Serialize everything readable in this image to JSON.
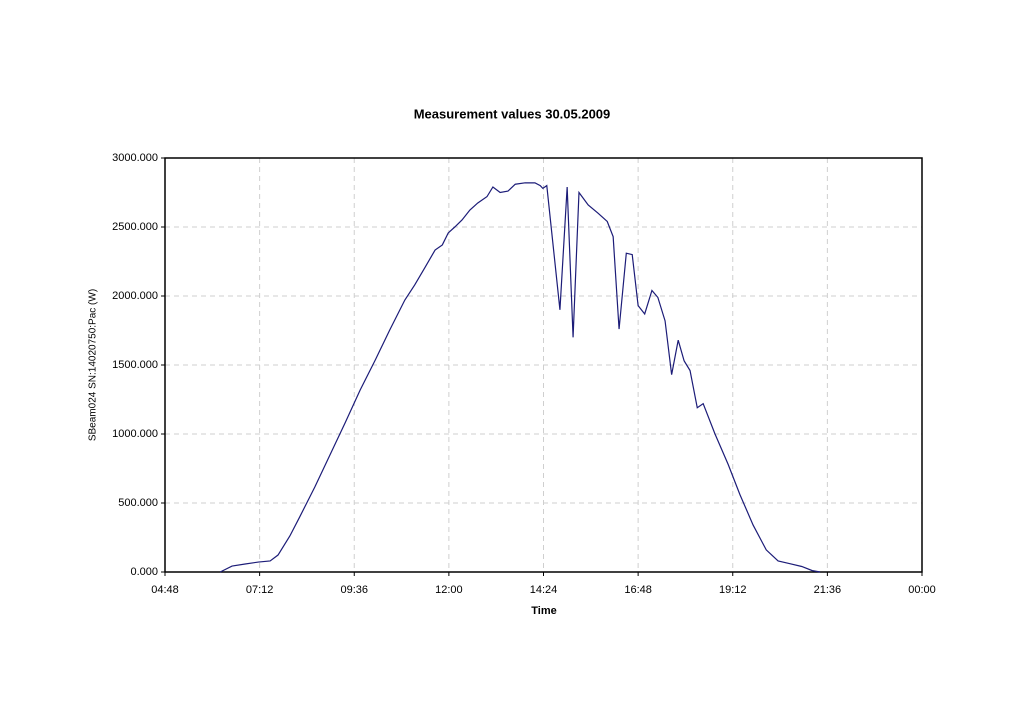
{
  "chart_data": {
    "type": "line",
    "title": "Measurement values 30.05.2009",
    "xlabel": "Time",
    "ylabel": "SBeam024 SN:14020750:Pac (W)",
    "x": [
      372,
      390,
      410,
      430,
      448,
      460,
      478,
      493,
      516,
      539,
      562,
      585,
      608,
      630,
      653,
      668,
      684,
      699,
      710,
      719,
      729,
      740,
      752,
      764,
      778,
      787,
      798,
      810,
      821,
      836,
      851,
      859,
      863,
      869,
      889,
      900,
      909,
      918,
      932,
      947,
      961,
      970,
      979,
      990,
      999,
      1008,
      1018,
      1029,
      1038,
      1049,
      1059,
      1069,
      1078,
      1087,
      1098,
      1107,
      1125,
      1145,
      1163,
      1183,
      1203,
      1221,
      1239,
      1257,
      1273,
      1285
    ],
    "series": [
      {
        "name": "SBeam024 SN:14020750:Pac (W)",
        "color": "#1c1c78",
        "values": [
          0,
          43,
          58,
          72,
          80,
          123,
          261,
          399,
          616,
          848,
          1080,
          1319,
          1536,
          1754,
          1971,
          2080,
          2210,
          2333,
          2370,
          2457,
          2500,
          2551,
          2623,
          2674,
          2720,
          2790,
          2750,
          2760,
          2810,
          2820,
          2820,
          2800,
          2780,
          2800,
          1900,
          2790,
          1700,
          2750,
          2660,
          2600,
          2540,
          2430,
          1760,
          2310,
          2300,
          1930,
          1870,
          2040,
          1990,
          1820,
          1430,
          1680,
          1530,
          1460,
          1190,
          1220,
          1000,
          780,
          560,
          340,
          160,
          80,
          60,
          40,
          10,
          0
        ]
      }
    ],
    "xlim": [
      288,
      1440
    ],
    "xticks": [
      {
        "value": 288,
        "label": "04:48"
      },
      {
        "value": 432,
        "label": "07:12"
      },
      {
        "value": 576,
        "label": "09:36"
      },
      {
        "value": 720,
        "label": "12:00"
      },
      {
        "value": 864,
        "label": "14:24"
      },
      {
        "value": 1008,
        "label": "16:48"
      },
      {
        "value": 1152,
        "label": "19:12"
      },
      {
        "value": 1296,
        "label": "21:36"
      },
      {
        "value": 1440,
        "label": "00:00"
      }
    ],
    "ylim": [
      0,
      3000
    ],
    "yticks": [
      {
        "value": 0,
        "label": "0.000"
      },
      {
        "value": 500,
        "label": "500.000"
      },
      {
        "value": 1000,
        "label": "1000.000"
      },
      {
        "value": 1500,
        "label": "1500.000"
      },
      {
        "value": 2000,
        "label": "2000.000"
      },
      {
        "value": 2500,
        "label": "2500.000"
      },
      {
        "value": 3000,
        "label": "3000.000"
      }
    ],
    "grid": true
  }
}
